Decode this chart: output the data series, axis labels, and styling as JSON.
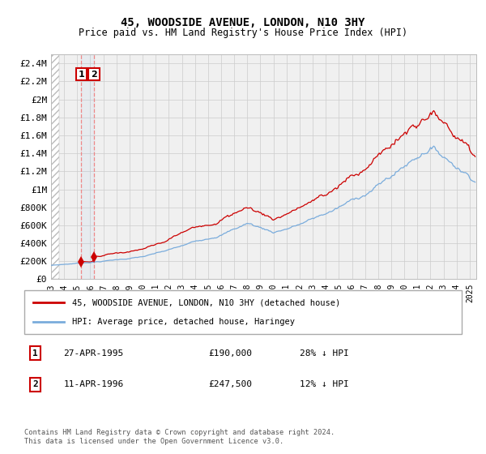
{
  "title": "45, WOODSIDE AVENUE, LONDON, N10 3HY",
  "subtitle": "Price paid vs. HM Land Registry's House Price Index (HPI)",
  "bg_color": "#ffffff",
  "plot_bg_color": "#f0f0f0",
  "grid_color": "#cccccc",
  "sale1_date": 1995.32,
  "sale1_price": 190000,
  "sale2_date": 1996.28,
  "sale2_price": 247500,
  "sale_color": "#cc0000",
  "hpi_color": "#7aacdc",
  "ylim_min": 0,
  "ylim_max": 2500000,
  "xlim_min": 1993.0,
  "xlim_max": 2025.5,
  "yticks": [
    0,
    200000,
    400000,
    600000,
    800000,
    1000000,
    1200000,
    1400000,
    1600000,
    1800000,
    2000000,
    2200000,
    2400000
  ],
  "ytick_labels": [
    "£0",
    "£200K",
    "£400K",
    "£600K",
    "£800K",
    "£1M",
    "£1.2M",
    "£1.4M",
    "£1.6M",
    "£1.8M",
    "£2M",
    "£2.2M",
    "£2.4M"
  ],
  "xticks": [
    1993,
    1994,
    1995,
    1996,
    1997,
    1998,
    1999,
    2000,
    2001,
    2002,
    2003,
    2004,
    2005,
    2006,
    2007,
    2008,
    2009,
    2010,
    2011,
    2012,
    2013,
    2014,
    2015,
    2016,
    2017,
    2018,
    2019,
    2020,
    2021,
    2022,
    2023,
    2024,
    2025
  ],
  "legend_label_red": "45, WOODSIDE AVENUE, LONDON, N10 3HY (detached house)",
  "legend_label_blue": "HPI: Average price, detached house, Haringey",
  "annotation1_num": "1",
  "annotation1_date": "27-APR-1995",
  "annotation1_price": "£190,000",
  "annotation1_hpi": "28% ↓ HPI",
  "annotation2_num": "2",
  "annotation2_date": "11-APR-1996",
  "annotation2_price": "£247,500",
  "annotation2_hpi": "12% ↓ HPI",
  "footer": "Contains HM Land Registry data © Crown copyright and database right 2024.\nThis data is licensed under the Open Government Licence v3.0."
}
